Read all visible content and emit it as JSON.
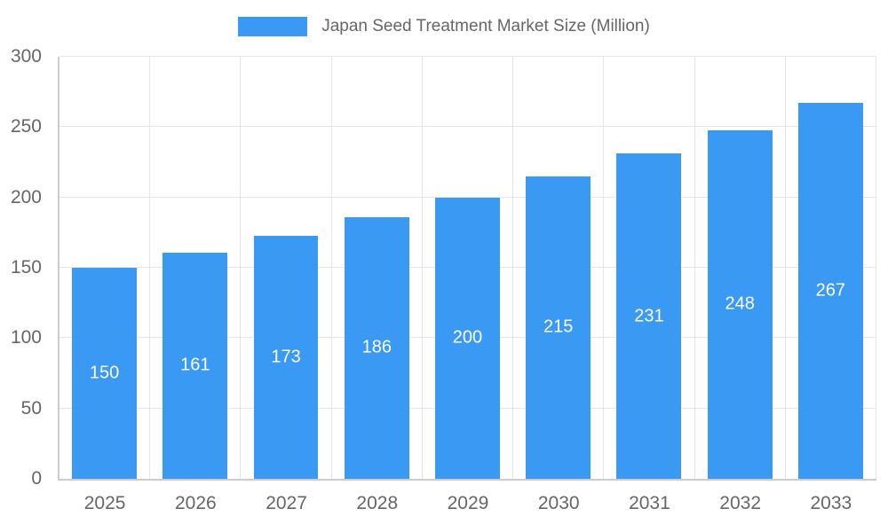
{
  "legend": {
    "label": "Japan Seed Treatment Market Size (Million)"
  },
  "colors": {
    "bar": "#3a99f2",
    "value_label": "#ffffff",
    "tick_label": "#666666",
    "gridline": "#e6e6e6",
    "axis": "#cccccc"
  },
  "chart_data": {
    "type": "bar",
    "title": "Japan Seed Treatment Market Size (Million)",
    "categories": [
      "2025",
      "2026",
      "2027",
      "2028",
      "2029",
      "2030",
      "2031",
      "2032",
      "2033"
    ],
    "values": [
      150,
      161,
      173,
      186,
      200,
      215,
      231,
      248,
      267
    ],
    "xlabel": "",
    "ylabel": "",
    "ylim": [
      0,
      300
    ],
    "ytick_step": 50,
    "yticks": [
      0,
      50,
      100,
      150,
      200,
      250,
      300
    ],
    "grid": true,
    "legend_position": "top",
    "value_labels_inside_bars": true
  }
}
